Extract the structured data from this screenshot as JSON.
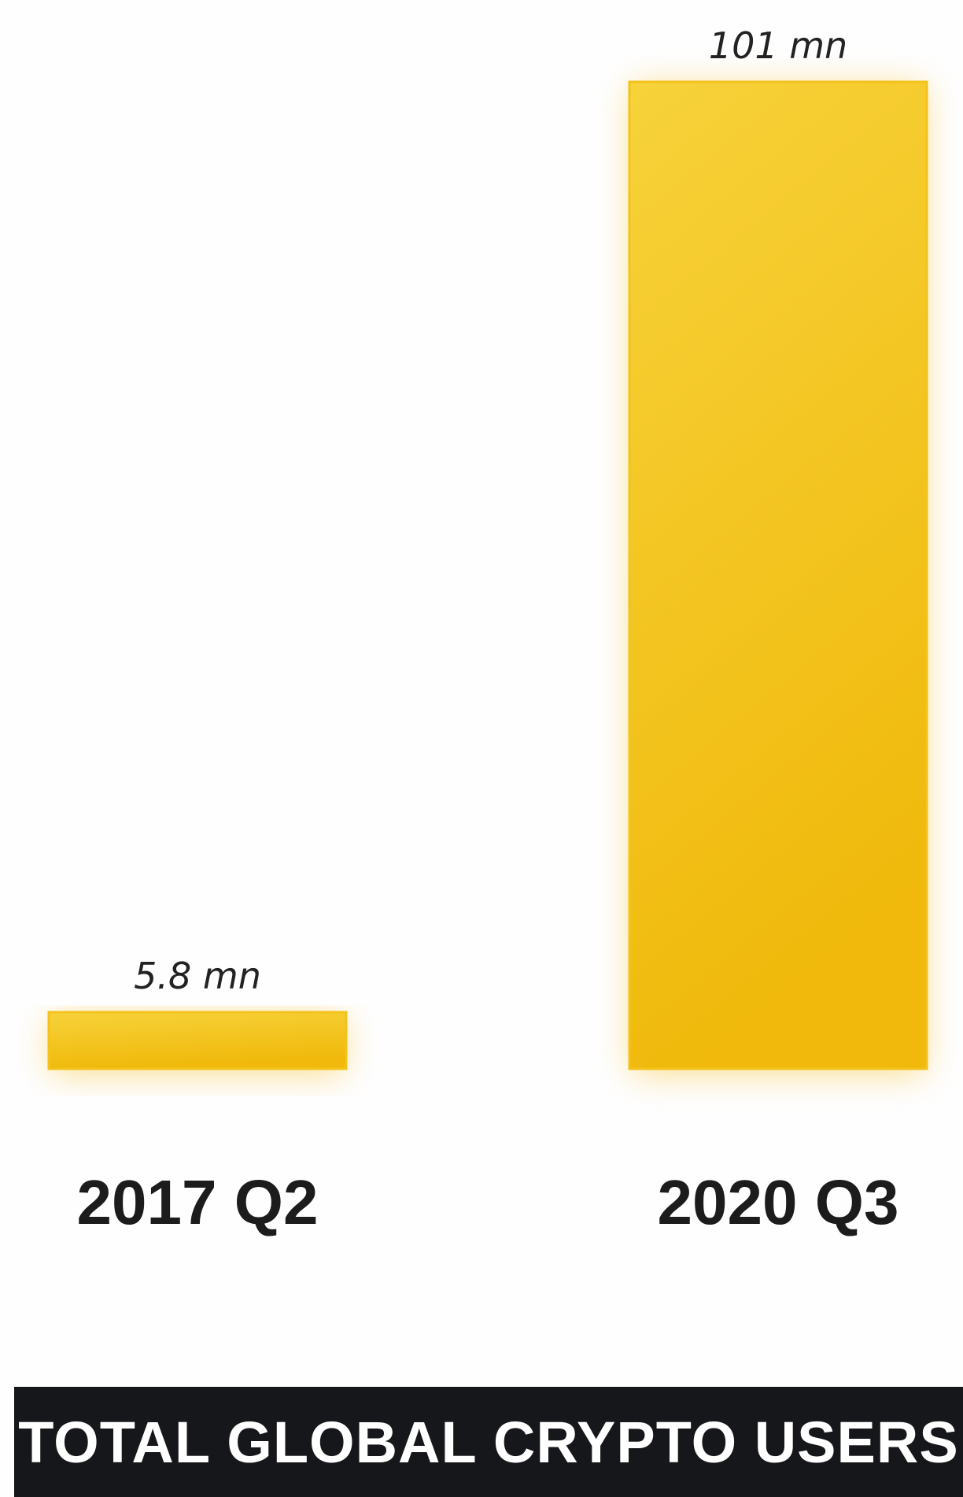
{
  "chart_data": {
    "type": "bar",
    "title": "TOTAL GLOBAL CRYPTO USERS",
    "categories": [
      "2017 Q2",
      "2020 Q3"
    ],
    "values": [
      5.8,
      101
    ],
    "value_labels": [
      "5.8 mn",
      "101 mn"
    ],
    "unit": "mn",
    "ylim": [
      0,
      101
    ],
    "grid": false,
    "legend": "none",
    "colors": {
      "bar_light": "#f7d23a",
      "bar_dark": "#f0b90b",
      "glow": "#f5b400",
      "title_bg": "#16171b",
      "title_text": "#ffffff"
    }
  }
}
